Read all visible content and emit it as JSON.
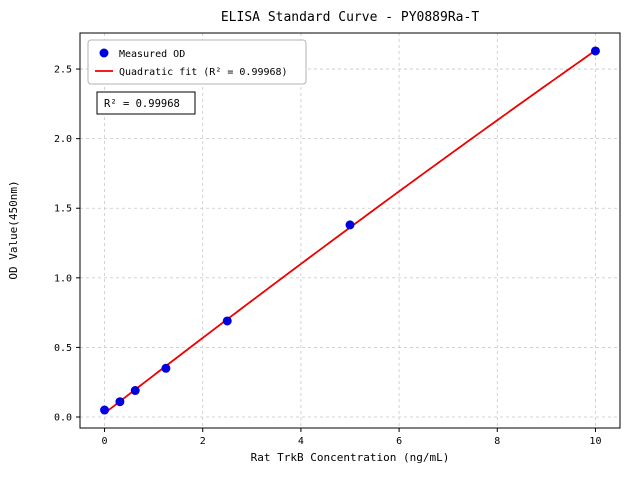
{
  "chart_data": {
    "type": "scatter",
    "title": "ELISA Standard Curve - PY0889Ra-T",
    "xlabel": "Rat TrkB Concentration (ng/mL)",
    "ylabel": "OD Value(450nm)",
    "x": [
      0,
      0.313,
      0.625,
      1.25,
      2.5,
      5,
      10
    ],
    "y": [
      0.05,
      0.11,
      0.19,
      0.35,
      0.69,
      1.38,
      2.63
    ],
    "fit_type": "quadratic",
    "r_squared": 0.99968,
    "legend": [
      "Measured OD",
      "Quadratic fit (R² = 0.99968)"
    ],
    "legend_position": "upper left",
    "annotation": "R² = 0.99968",
    "xticks": [
      0,
      2,
      4,
      6,
      8,
      10
    ],
    "yticks": [
      0,
      0.5,
      1,
      1.5,
      2,
      2.5
    ],
    "xlim": [
      -0.5,
      10.5
    ],
    "ylim": [
      -0.079,
      2.759
    ],
    "grid": true,
    "colors": {
      "points": "#0000dd",
      "fit_line": "#ee0000"
    }
  }
}
